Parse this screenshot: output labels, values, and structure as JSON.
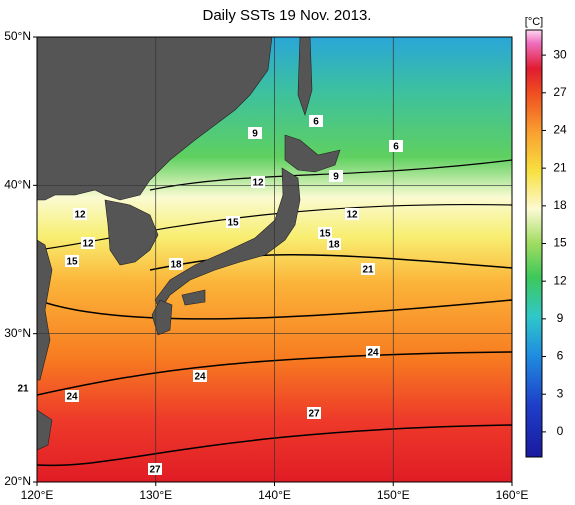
{
  "title": "Daily SSTs 19 Nov. 2013.",
  "lon_ticks": [
    {
      "value": 120,
      "label": "120°E"
    },
    {
      "value": 130,
      "label": "130°E"
    },
    {
      "value": 140,
      "label": "140°E"
    },
    {
      "value": 150,
      "label": "150°E"
    },
    {
      "value": 160,
      "label": "160°E"
    }
  ],
  "lat_ticks": [
    {
      "value": 20,
      "label": "20°N"
    },
    {
      "value": 30,
      "label": "30°N"
    },
    {
      "value": 40,
      "label": "40°N"
    },
    {
      "value": 50,
      "label": "50°N"
    }
  ],
  "xlim": [
    120,
    160
  ],
  "ylim": [
    20,
    50
  ],
  "colorbar": {
    "unit": "[°C]",
    "lim": [
      -2,
      32
    ],
    "ticks": [
      0,
      3,
      6,
      9,
      12,
      15,
      18,
      21,
      24,
      27,
      30
    ]
  },
  "contour_labels": [
    6,
    6,
    9,
    9,
    12,
    12,
    12,
    12,
    15,
    15,
    15,
    18,
    18,
    21,
    21,
    24,
    24,
    24,
    27,
    27
  ]
}
